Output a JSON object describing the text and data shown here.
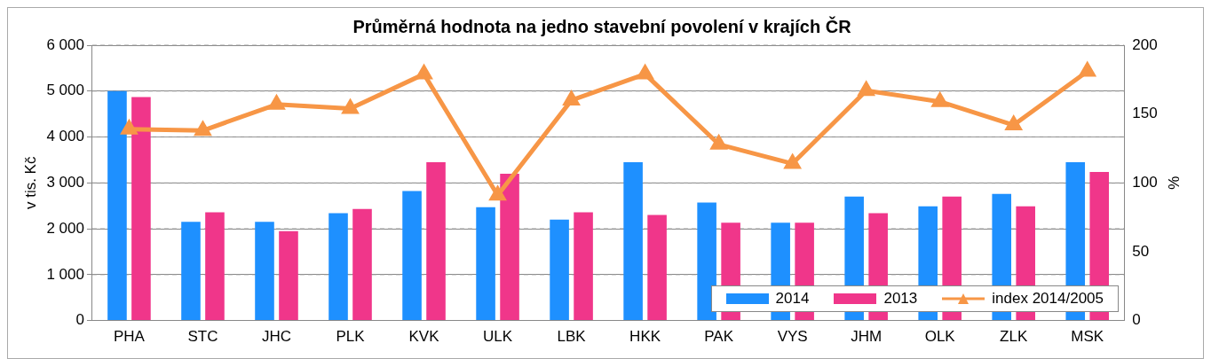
{
  "chart_data": {
    "type": "bar",
    "title": "Průměrná hodnota na jedno stavební povolení v krajích ČR",
    "ylabel": "v tis. Kč",
    "y2label": "%",
    "categories": [
      "PHA",
      "STC",
      "JHC",
      "PLK",
      "KVK",
      "ULK",
      "LBK",
      "HKK",
      "PAK",
      "VYS",
      "JHM",
      "OLK",
      "ZLK",
      "MSK"
    ],
    "series": [
      {
        "name": "2014",
        "color": "#1e90ff",
        "values": [
          5000,
          2150,
          2150,
          2340,
          2820,
          2470,
          2200,
          3450,
          2570,
          2130,
          2700,
          2490,
          2760,
          3450
        ]
      },
      {
        "name": "2013",
        "color": "#f0368a",
        "values": [
          4870,
          2360,
          1950,
          2430,
          3450,
          3200,
          2360,
          2300,
          2130,
          2130,
          2340,
          2700,
          2490,
          3240
        ]
      },
      {
        "name": "index 2014/2005",
        "type": "line",
        "axis": "y2",
        "color": "#f79646",
        "marker": "triangle",
        "values": [
          139,
          138,
          157,
          154,
          179,
          91,
          160,
          179,
          128,
          114,
          167,
          159,
          142,
          181
        ]
      }
    ],
    "ylim": [
      0,
      6000
    ],
    "yticks": [
      0,
      {
        "value": 1000,
        "label": "1 000"
      },
      {
        "value": 2000,
        "label": "2 000"
      },
      {
        "value": 3000,
        "label": "3 000"
      },
      {
        "value": 4000,
        "label": "4 000"
      },
      {
        "value": 5000,
        "label": "5 000"
      },
      {
        "value": 6000,
        "label": "6 000"
      }
    ],
    "y2lim": [
      0,
      200
    ],
    "y2ticks": [
      0,
      50,
      100,
      150,
      200
    ],
    "grid": "y",
    "legend": "bottom right"
  }
}
